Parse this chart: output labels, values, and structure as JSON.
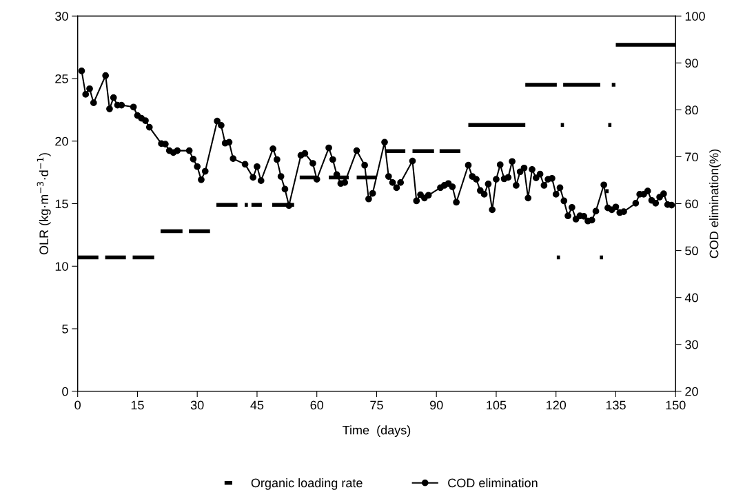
{
  "chart_data": {
    "type": "line",
    "xlabel": "Time  (days)",
    "ylabel": "OLR (kg·m$^{−3}$·d$^{−1}$)",
    "y2label": "COD elimination(%)",
    "xlim": [
      0,
      150
    ],
    "xticks": [
      0,
      15,
      30,
      45,
      60,
      75,
      90,
      105,
      120,
      135,
      150
    ],
    "ylim": [
      0,
      30
    ],
    "yticks": [
      0,
      5,
      10,
      15,
      20,
      25,
      30
    ],
    "y2lim": [
      20,
      100
    ],
    "y2ticks": [
      20,
      30,
      40,
      50,
      60,
      70,
      80,
      90,
      100
    ],
    "grid": false,
    "legend": "bottom",
    "series": [
      {
        "name": "Organic loading rate",
        "color": "#000000",
        "marker": "none",
        "axis": "y",
        "x": [
          0,
          5.2,
          null,
          6.9,
          12.1,
          null,
          13.8,
          19.2,
          null,
          20.8,
          26.3,
          null,
          27.9,
          33.2,
          null,
          34.8,
          40.1,
          null,
          41.9,
          42.7,
          null,
          43.6,
          46.2,
          null,
          48.8,
          54.3,
          null,
          55.7,
          59.7,
          null,
          63,
          68,
          null,
          70,
          75,
          null,
          77.3,
          82.2,
          null,
          84,
          89.4,
          null,
          90.8,
          96,
          null,
          98,
          112.3,
          null,
          112.3,
          120.2,
          null,
          120.2,
          121,
          null,
          121.2,
          122,
          null,
          121.8,
          131.1,
          null,
          131,
          131.8,
          null,
          132.4,
          133.2,
          null,
          133.1,
          133.9,
          null,
          134.0,
          134.9,
          null,
          135,
          150
        ],
        "values": [
          10.7,
          10.7,
          null,
          10.7,
          10.7,
          null,
          10.7,
          10.7,
          null,
          12.8,
          12.8,
          null,
          12.8,
          12.8,
          null,
          14.9,
          14.9,
          null,
          14.9,
          14.9,
          null,
          14.9,
          14.9,
          null,
          14.9,
          14.9,
          null,
          17.1,
          17.1,
          null,
          17.1,
          17.1,
          null,
          17.1,
          17.1,
          null,
          19.2,
          19.2,
          null,
          19.2,
          19.2,
          null,
          19.2,
          19.2,
          null,
          21.3,
          21.3,
          null,
          24.5,
          24.5,
          null,
          10.7,
          10.7,
          null,
          21.3,
          21.3,
          null,
          24.5,
          24.5,
          null,
          10.7,
          10.7,
          null,
          16.0,
          16.0,
          null,
          21.3,
          21.3,
          null,
          24.5,
          24.5,
          null,
          27.7,
          27.7
        ]
      },
      {
        "name": "COD elimination",
        "color": "#000000",
        "marker": "circle",
        "axis": "y2",
        "x": [
          1,
          2,
          3,
          4,
          7,
          8,
          9,
          10,
          11,
          14,
          15,
          16,
          17,
          18,
          21,
          22,
          23,
          24,
          25,
          28,
          29,
          30,
          31,
          32,
          35,
          36,
          37,
          38,
          39,
          42,
          44,
          45,
          46,
          49,
          50,
          51,
          52,
          53,
          56,
          57,
          59,
          60,
          63,
          64,
          65,
          66,
          67,
          70,
          72,
          73,
          74,
          77,
          78,
          79,
          80,
          81,
          84,
          85,
          86,
          87,
          88,
          91,
          92,
          93,
          94,
          95,
          98,
          99,
          100,
          101,
          102,
          103,
          104,
          105,
          106,
          107,
          108,
          109,
          110,
          111,
          112,
          113,
          114,
          115,
          116,
          117,
          118,
          119,
          120,
          121,
          122,
          123,
          124,
          125,
          126,
          127,
          128,
          129,
          130,
          132,
          133,
          134,
          135,
          136,
          137,
          140,
          141,
          142,
          143,
          144,
          145,
          146,
          147,
          148,
          149
        ],
        "values": [
          88.3,
          83.3,
          84.5,
          81.5,
          87.3,
          80.2,
          82.6,
          81.0,
          81.0,
          80.6,
          78.8,
          78.2,
          77.7,
          76.3,
          72.8,
          72.7,
          71.3,
          70.9,
          71.3,
          71.3,
          69.5,
          67.9,
          65.1,
          66.9,
          77.6,
          76.7,
          72.9,
          73.1,
          69.6,
          68.4,
          65.6,
          67.9,
          64.9,
          71.7,
          69.4,
          65.8,
          63.1,
          59.6,
          70.3,
          70.7,
          68.6,
          65.2,
          71.9,
          69.4,
          66.2,
          64.3,
          64.5,
          71.3,
          68.2,
          61.0,
          62.2,
          73.1,
          65.8,
          64.5,
          63.4,
          64.5,
          69.1,
          60.6,
          61.9,
          61.2,
          61.8,
          63.4,
          63.9,
          64.3,
          63.6,
          60.3,
          68.2,
          65.8,
          65.2,
          62.8,
          62.0,
          64.2,
          58.7,
          65.2,
          68.3,
          65.3,
          65.6,
          69.0,
          63.9,
          66.8,
          67.6,
          61.2,
          67.3,
          65.5,
          66.3,
          63.9,
          65.2,
          65.4,
          62.0,
          63.4,
          60.6,
          57.4,
          59.2,
          56.7,
          57.4,
          57.3,
          56.3,
          56.5,
          58.4,
          64.0,
          59.1,
          58.7,
          59.3,
          58.1,
          58.3,
          60.1,
          62.0,
          62.0,
          62.7,
          60.7,
          60.1,
          61.4,
          62.1,
          59.8,
          59.7
        ]
      }
    ]
  }
}
